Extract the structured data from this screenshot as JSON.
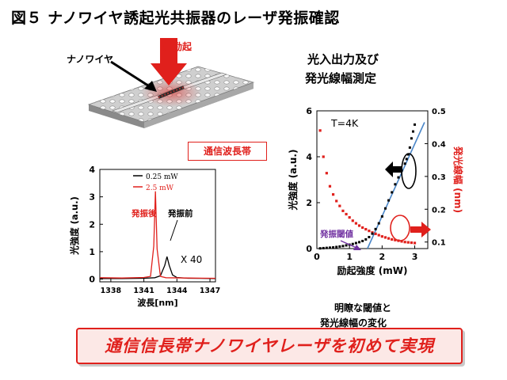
{
  "title": "図５ ナノワイヤ誘起光共振器のレーザ発振確認",
  "device": {
    "excitation_label": "光励起",
    "nanowire_label": "ナノワイヤ"
  },
  "subtitle_line1": "光入出力及び",
  "subtitle_line2": "発光線幅測定",
  "telecom_band_label": "通信波長帯",
  "notes": {
    "line1": "明瞭な閾値と",
    "line2": "発光線幅の変化"
  },
  "banner": "通信信長帯ナノワイヤレーザを初めて実現",
  "colors": {
    "red": "#e0201c",
    "blue": "#4a86c8",
    "purple": "#7030a0",
    "black": "#000000"
  },
  "chart_data": [
    {
      "type": "line",
      "xlabel": "波長[nm]",
      "ylabel": "光強度 (a.u.)",
      "xlim": [
        1337,
        1347.5
      ],
      "ylim": [
        -0.1,
        4
      ],
      "xticks": [
        1338,
        1341,
        1344,
        1347
      ],
      "yticks": [
        0,
        1,
        2,
        3,
        4
      ],
      "series": [
        {
          "name": "0.25 mW",
          "color": "#000000",
          "x": [
            1337,
            1339,
            1341,
            1342,
            1342.5,
            1342.9,
            1343.1,
            1343.3,
            1343.6,
            1344,
            1345,
            1347.5
          ],
          "y": [
            0.02,
            0.02,
            0.03,
            0.05,
            0.12,
            0.5,
            0.82,
            0.5,
            0.15,
            0.06,
            0.03,
            0.02
          ]
        },
        {
          "name": "2.5 mW",
          "color": "#e0201c",
          "x": [
            1337,
            1339,
            1341,
            1341.6,
            1341.9,
            1342.05,
            1342.2,
            1342.5,
            1343,
            1345,
            1347.5
          ],
          "y": [
            0.05,
            0.04,
            0.06,
            0.1,
            1.2,
            3.2,
            1.1,
            0.1,
            0.05,
            0.04,
            0.03
          ]
        }
      ],
      "annotations": {
        "after": "発振後",
        "before": "発振前",
        "scale": "X 40"
      }
    },
    {
      "type": "scatter",
      "xlabel": "励起強度 (mW)",
      "ylabel_left": "光強度 (a.u.)",
      "ylabel_right": "発光線幅 (nm)",
      "xlim": [
        0,
        3.4
      ],
      "ylim_left": [
        0,
        6
      ],
      "ylim_right": [
        0.08,
        0.5
      ],
      "xticks": [
        0,
        1,
        2,
        3
      ],
      "yticks_left": [
        0,
        2,
        4,
        6
      ],
      "yticks_right": [
        0.1,
        0.2,
        0.3,
        0.4,
        0.5
      ],
      "temperature_label": "T=4K",
      "threshold_label": "発振閾値",
      "intensity": {
        "x": [
          0.1,
          0.2,
          0.3,
          0.4,
          0.5,
          0.6,
          0.7,
          0.8,
          0.9,
          1.0,
          1.1,
          1.2,
          1.3,
          1.4,
          1.5,
          1.6,
          1.7,
          1.8,
          1.9,
          2.0,
          2.1,
          2.2,
          2.3,
          2.4,
          2.5,
          2.6,
          2.7,
          2.75,
          2.8,
          2.85,
          2.9,
          2.95,
          3.0
        ],
        "y": [
          0.01,
          0.02,
          0.03,
          0.04,
          0.05,
          0.07,
          0.09,
          0.11,
          0.14,
          0.17,
          0.2,
          0.24,
          0.28,
          0.33,
          0.4,
          0.5,
          0.65,
          0.85,
          1.1,
          1.4,
          1.75,
          2.1,
          2.45,
          2.8,
          3.1,
          3.4,
          3.7,
          3.9,
          4.1,
          4.4,
          4.8,
          5.1,
          5.4
        ]
      },
      "linewidth": {
        "x": [
          0.1,
          0.2,
          0.3,
          0.4,
          0.5,
          0.6,
          0.7,
          0.8,
          0.9,
          1.0,
          1.1,
          1.2,
          1.3,
          1.4,
          1.5,
          1.6,
          1.7,
          1.8,
          1.9,
          2.0,
          2.1,
          2.2,
          2.3,
          2.4,
          2.5,
          2.6,
          2.7,
          2.8,
          2.9,
          3.0
        ],
        "y": [
          0.44,
          0.36,
          0.31,
          0.27,
          0.245,
          0.225,
          0.21,
          0.195,
          0.185,
          0.175,
          0.165,
          0.157,
          0.15,
          0.144,
          0.139,
          0.134,
          0.129,
          0.125,
          0.121,
          0.117,
          0.114,
          0.111,
          0.108,
          0.106,
          0.104,
          0.102,
          0.1,
          0.099,
          0.098,
          0.097
        ]
      },
      "fit_line": {
        "x": [
          1.55,
          3.3
        ],
        "y": [
          0,
          5.5
        ]
      }
    }
  ]
}
